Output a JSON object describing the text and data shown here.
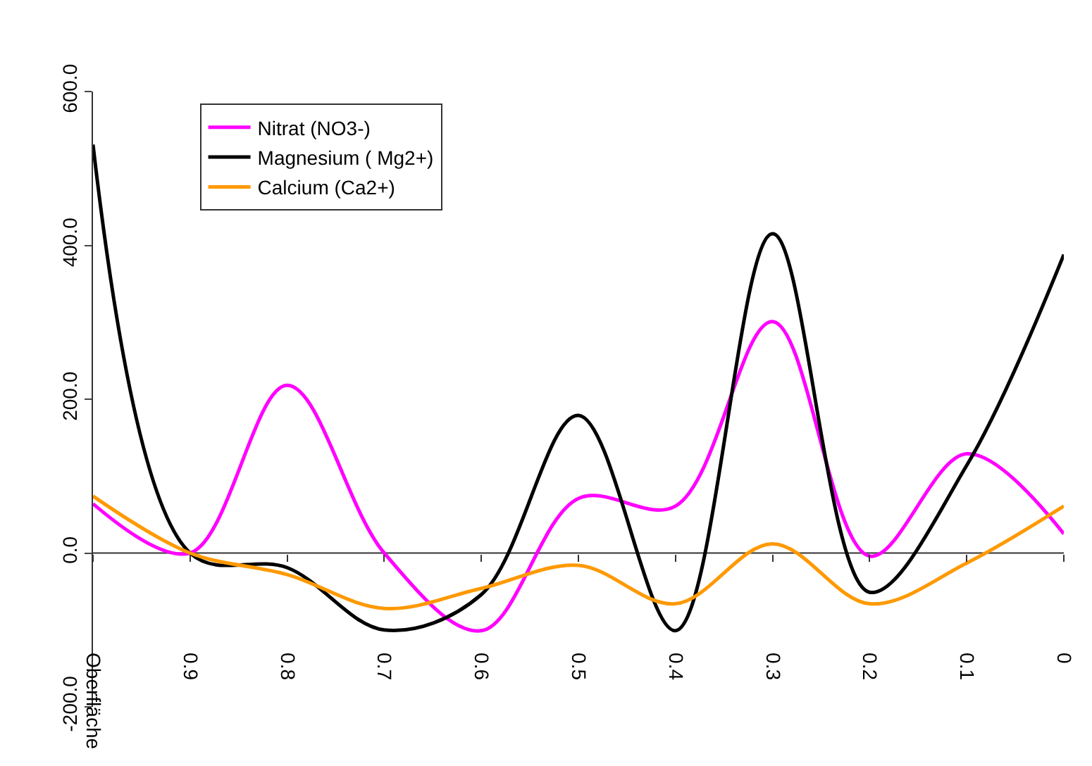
{
  "chart_data": {
    "type": "line",
    "categories": [
      "Oberfläche",
      "0.9",
      "0.8",
      "0.7",
      "0.6",
      "0.5",
      "0.4",
      "0.3",
      "0.2",
      "0.1",
      "0"
    ],
    "series": [
      {
        "name": "Nitrat (NO3-)",
        "color": "#ff00ff",
        "values": [
          64,
          0,
          218,
          0,
          -101,
          71,
          61,
          301,
          -4,
          129,
          25
        ]
      },
      {
        "name": "Magnesium ( Mg2+)",
        "color": "#000000",
        "values": [
          531,
          0,
          -19,
          -100,
          -54,
          179,
          -101,
          415,
          -51,
          114,
          388
        ]
      },
      {
        "name": "Calcium (Ca2+)",
        "color": "#ff9900",
        "values": [
          74,
          0,
          -28,
          -72,
          -46,
          -16,
          -66,
          12,
          -66,
          -13,
          61
        ]
      }
    ],
    "ylim": [
      -200,
      600
    ],
    "yticks": [
      {
        "value": -200,
        "label": "-200.0"
      },
      {
        "value": 0,
        "label": "0.0"
      },
      {
        "value": 200,
        "label": "200.0"
      },
      {
        "value": 400,
        "label": "400.0"
      },
      {
        "value": 600,
        "label": "600.0"
      }
    ],
    "ref_lines": [
      {
        "axis": "y",
        "value": 0,
        "color": "#333333",
        "line_style": "solid"
      }
    ],
    "grid": false,
    "legend": "top left",
    "marker": "none",
    "line_style": "solid"
  }
}
